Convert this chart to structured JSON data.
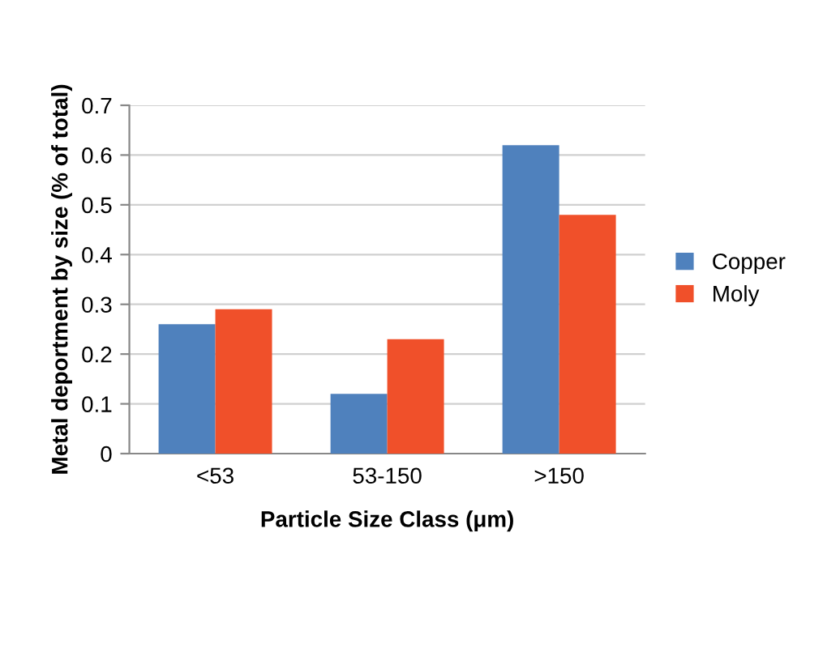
{
  "chart_data": {
    "type": "bar",
    "xlabel": "Particle Size Class (μm)",
    "ylabel": "Metal deportment by size (% of total)",
    "categories": [
      "<53",
      "53-150",
      ">150"
    ],
    "series": [
      {
        "name": "Copper",
        "color": "#4f81bd",
        "values": [
          0.26,
          0.12,
          0.62
        ]
      },
      {
        "name": "Moly",
        "color": "#f0502a",
        "values": [
          0.29,
          0.23,
          0.48
        ]
      }
    ],
    "ylim": [
      0,
      0.7
    ],
    "yticks": [
      {
        "value": 0,
        "label": "0"
      },
      0.1,
      0.2,
      0.3,
      0.4,
      0.5,
      0.6,
      0.7
    ],
    "grid": "y",
    "legend": "right"
  }
}
